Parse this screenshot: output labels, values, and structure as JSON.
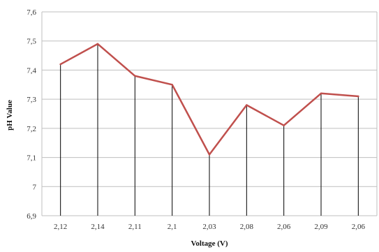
{
  "chart_data": {
    "type": "line",
    "title": "",
    "xlabel": "Voltage (V)",
    "ylabel": "pH Value",
    "categories": [
      "2,12",
      "2,14",
      "2,11",
      "2,1",
      "2,03",
      "2,08",
      "2,06",
      "2,09",
      "2,06"
    ],
    "series": [
      {
        "values": [
          7.42,
          7.49,
          7.38,
          7.35,
          7.11,
          7.28,
          7.21,
          7.32,
          7.31
        ],
        "color": "#c0504d"
      }
    ],
    "ylim": [
      6.9,
      7.6
    ],
    "yticks": [
      6.9,
      7.0,
      7.1,
      7.2,
      7.3,
      7.4,
      7.5,
      7.6
    ],
    "ytick_labels": [
      "6,9",
      "7",
      "7,1",
      "7,2",
      "7,3",
      "7,4",
      "7,5",
      "7,6"
    ],
    "grid": "horizontal",
    "drop_lines": true,
    "legend": "none",
    "colors": {
      "series_line": "#c0504d",
      "gridline": "#bfbfbf",
      "drop_line": "#000000",
      "plot_border": "#bfbfbf"
    }
  }
}
